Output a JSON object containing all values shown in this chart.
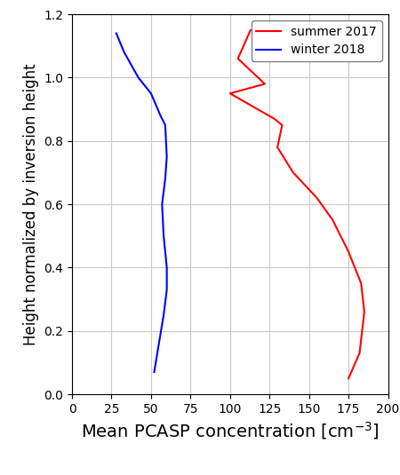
{
  "summer_x": [
    113,
    105,
    122,
    100,
    128,
    133,
    130,
    140,
    155,
    165,
    175,
    183,
    185,
    182,
    175
  ],
  "summer_y": [
    1.15,
    1.06,
    0.98,
    0.95,
    0.87,
    0.85,
    0.78,
    0.7,
    0.62,
    0.55,
    0.45,
    0.35,
    0.26,
    0.13,
    0.05
  ],
  "winter_x": [
    28,
    33,
    42,
    50,
    56,
    59,
    60,
    59,
    57,
    58,
    60,
    60,
    58,
    55,
    52
  ],
  "winter_y": [
    1.14,
    1.08,
    1.0,
    0.95,
    0.88,
    0.85,
    0.75,
    0.68,
    0.6,
    0.5,
    0.4,
    0.33,
    0.25,
    0.16,
    0.07
  ],
  "summer_color": "#ff0000",
  "winter_color": "#0000ff",
  "xlabel": "Mean PCASP concentration [cm$^{-3}$]",
  "ylabel": "Height normalized by inversion height",
  "xlim": [
    0,
    200
  ],
  "ylim": [
    0.0,
    1.2
  ],
  "xticks": [
    0,
    25,
    50,
    75,
    100,
    125,
    150,
    175,
    200
  ],
  "yticks": [
    0.0,
    0.2,
    0.4,
    0.6,
    0.8,
    1.0,
    1.2
  ],
  "legend_labels": [
    "summer 2017",
    "winter 2018"
  ],
  "legend_colors": [
    "#ff0000",
    "#0000ff"
  ],
  "grid_color": "#c8c8c8",
  "background_color": "#ffffff",
  "xlabel_fontsize": 14,
  "ylabel_fontsize": 12,
  "tick_fontsize": 10,
  "legend_fontsize": 10
}
